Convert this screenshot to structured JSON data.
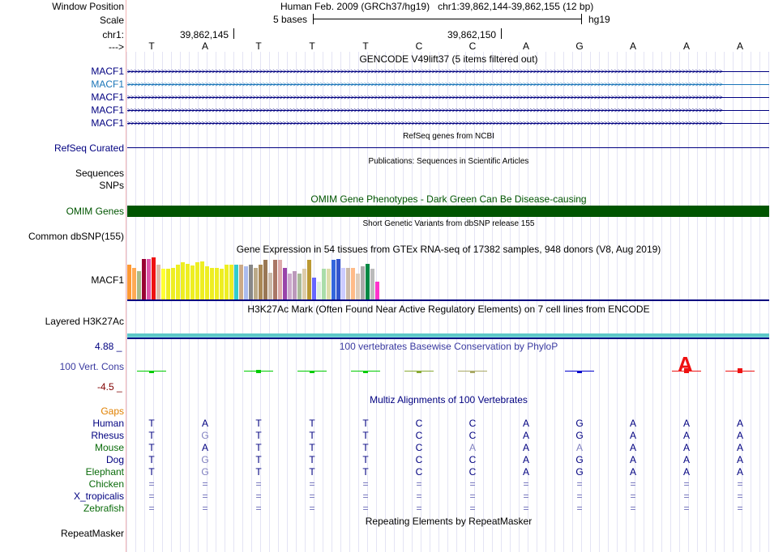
{
  "header": {
    "window_position_label": "Window Position",
    "window_position_value": "Human Feb. 2009 (GRCh37/hg19)   chr1:39,862,144-39,862,155 (12 bp)",
    "scale_label": "Scale",
    "scale_left": "5 bases",
    "scale_right": "hg19",
    "chr_label": "chr1:",
    "coord_1": "39,862,145",
    "coord_2": "39,862,150",
    "strand_label": "--->"
  },
  "reference_bases": [
    "T",
    "A",
    "T",
    "T",
    "T",
    "C",
    "C",
    "A",
    "G",
    "A",
    "A",
    "A"
  ],
  "tracks": {
    "gencode_title": "GENCODE V49lift37 (5 items filtered out)",
    "gencode_items": [
      {
        "label": "MACF1",
        "color": "#000080"
      },
      {
        "label": "MACF1",
        "color": "#1a75b8"
      },
      {
        "label": "MACF1",
        "color": "#000080"
      },
      {
        "label": "MACF1",
        "color": "#000080"
      },
      {
        "label": "MACF1",
        "color": "#000080"
      }
    ],
    "gene_arrows": ">>>>>>>>>>>>>>>>>>>>>>>>>>>>>>>>>>>>>>>>>>>>>>>>>>>>>>>>>>>>>>>>>>>>>>>>>>>>>>>>>>>>>>>>>>>>>>>>>>>>>>>>>>>>>>>>>>>>>>>>>>>>>>>>>>>>>>>>>>>>>>>>>>>>>>>>>>>>>>>>>>>>>>>>>>>>>>>>",
    "refseq_title": "RefSeq genes from NCBI",
    "refseq_label": "RefSeq Curated",
    "pubs_title": "Publications: Sequences in Scientific Articles",
    "sequences_label": "Sequences",
    "snps_label": "SNPs",
    "omim_title": "OMIM Gene Phenotypes - Dark Green Can Be Disease-causing",
    "omim_label": "OMIM Genes",
    "dbsnp_title": "Short Genetic Variants from dbSNP release 155",
    "dbsnp_label": "Common dbSNP(155)",
    "gtex_title": "Gene Expression in 54 tissues from GTEx RNA-seq of 17382 samples, 948 donors (V8, Aug 2019)",
    "gtex_label": "MACF1",
    "h3k27ac_title": "H3K27Ac Mark (Often Found Near Active Regulatory Elements) on 7 cell lines from ENCODE",
    "h3k27ac_label": "Layered H3K27Ac",
    "phylop_title": "100 vertebrates Basewise Conservation by PhyloP",
    "phylop_label": "100 Vert. Cons",
    "phylop_max": "4.88 _",
    "phylop_min": "-4.5 _",
    "multiz_title": "Multiz Alignments of 100 Vertebrates",
    "gaps_label": "Gaps",
    "repeat_title": "Repeating Elements by RepeatMasker",
    "repeat_label": "RepeatMasker"
  },
  "gtex_bars": [
    {
      "value": 0.8,
      "color": "#ff9933"
    },
    {
      "value": 0.73,
      "color": "#ffaa55"
    },
    {
      "value": 0.65,
      "color": "#aabb88"
    },
    {
      "value": 0.92,
      "color": "#990033"
    },
    {
      "value": 0.92,
      "color": "#dd55aa"
    },
    {
      "value": 0.97,
      "color": "#ee1111"
    },
    {
      "value": 0.8,
      "color": "#ddbbaa"
    },
    {
      "value": 0.7,
      "color": "#ffff33"
    },
    {
      "value": 0.7,
      "color": "#eeee22"
    },
    {
      "value": 0.73,
      "color": "#eeee22"
    },
    {
      "value": 0.8,
      "color": "#eeee22"
    },
    {
      "value": 0.85,
      "color": "#eeee22"
    },
    {
      "value": 0.82,
      "color": "#eeee22"
    },
    {
      "value": 0.77,
      "color": "#eeee22"
    },
    {
      "value": 0.85,
      "color": "#eeee22"
    },
    {
      "value": 0.87,
      "color": "#eeee22"
    },
    {
      "value": 0.75,
      "color": "#eeee22"
    },
    {
      "value": 0.72,
      "color": "#eeee22"
    },
    {
      "value": 0.72,
      "color": "#eeee22"
    },
    {
      "value": 0.7,
      "color": "#eeee22"
    },
    {
      "value": 0.8,
      "color": "#eeee22"
    },
    {
      "value": 0.8,
      "color": "#eeee22"
    },
    {
      "value": 0.8,
      "color": "#33cccc"
    },
    {
      "value": 0.8,
      "color": "#ccaa88"
    },
    {
      "value": 0.75,
      "color": "#aabbee"
    },
    {
      "value": 0.8,
      "color": "#888888"
    },
    {
      "value": 0.73,
      "color": "#bbaa88"
    },
    {
      "value": 0.8,
      "color": "#aa8855"
    },
    {
      "value": 0.9,
      "color": "#997755"
    },
    {
      "value": 0.62,
      "color": "#ccbbaa"
    },
    {
      "value": 0.9,
      "color": "#aa7766"
    },
    {
      "value": 0.9,
      "color": "#ddaaaa"
    },
    {
      "value": 0.73,
      "color": "#9944aa"
    },
    {
      "value": 0.6,
      "color": "#ccaacc"
    },
    {
      "value": 0.65,
      "color": "#bb99bb"
    },
    {
      "value": 0.6,
      "color": "#aabb99"
    },
    {
      "value": 0.7,
      "color": "#ddccaa"
    },
    {
      "value": 0.9,
      "color": "#bb9933"
    },
    {
      "value": 0.5,
      "color": "#6666ff"
    },
    {
      "value": 0.4,
      "color": "#ddeedd"
    },
    {
      "value": 0.7,
      "color": "#aaddaa"
    },
    {
      "value": 0.7,
      "color": "#ddddaa"
    },
    {
      "value": 0.9,
      "color": "#3366dd"
    },
    {
      "value": 0.92,
      "color": "#3355cc"
    },
    {
      "value": 0.73,
      "color": "#ccccff"
    },
    {
      "value": 0.73,
      "color": "#ccbbaa"
    },
    {
      "value": 0.73,
      "color": "#ffbb88"
    },
    {
      "value": 0.6,
      "color": "#ddccbb"
    },
    {
      "value": 0.75,
      "color": "#aaaaaa"
    },
    {
      "value": 0.82,
      "color": "#008844"
    },
    {
      "value": 0.7,
      "color": "#bbbbbb"
    },
    {
      "value": 0.4,
      "color": "#ff33cc"
    }
  ],
  "phylop_marks": [
    {
      "position": 1,
      "height": 0.06,
      "color": "#00cc00"
    },
    {
      "position": 3,
      "height": 0.18,
      "color": "#00cc00"
    },
    {
      "position": 4,
      "height": 0.1,
      "color": "#00cc00"
    },
    {
      "position": 5,
      "height": 0.05,
      "color": "#00cc00"
    },
    {
      "position": 6,
      "height": 0.02,
      "color": "#88aa33"
    },
    {
      "position": 7,
      "height": 0.02,
      "color": "#aaaa66"
    },
    {
      "position": 9,
      "height": 0.04,
      "color": "#0000cc"
    },
    {
      "position": 11,
      "height": 0.95,
      "color": "#ee1111"
    },
    {
      "position": 12,
      "height": 0.3,
      "color": "#ee1111"
    }
  ],
  "phylop_letters": [
    {
      "position": 11,
      "text": "A",
      "color": "#ee1111"
    }
  ],
  "species": [
    {
      "name": "Human",
      "color": "#000080",
      "bases": [
        "T",
        "A",
        "T",
        "T",
        "T",
        "C",
        "C",
        "A",
        "G",
        "A",
        "A",
        "A"
      ]
    },
    {
      "name": "Rhesus",
      "color": "#000080",
      "bases": [
        "T",
        "G",
        "T",
        "T",
        "T",
        "C",
        "C",
        "A",
        "G",
        "A",
        "A",
        "A"
      ]
    },
    {
      "name": "Mouse",
      "color": "#0a6b0a",
      "bases": [
        "T",
        "A",
        "T",
        "T",
        "T",
        "C",
        "A",
        "A",
        "A",
        "A",
        "A",
        "A"
      ]
    },
    {
      "name": "Dog",
      "color": "#000080",
      "bases": [
        "T",
        "G",
        "T",
        "T",
        "T",
        "C",
        "C",
        "A",
        "G",
        "A",
        "A",
        "A"
      ]
    },
    {
      "name": "Elephant",
      "color": "#0a6b0a",
      "bases": [
        "T",
        "G",
        "T",
        "T",
        "T",
        "C",
        "C",
        "A",
        "G",
        "A",
        "A",
        "A"
      ]
    },
    {
      "name": "Chicken",
      "color": "#0a6b0a",
      "bases": [
        "=",
        "=",
        "=",
        "=",
        "=",
        "=",
        "=",
        "=",
        "=",
        "=",
        "=",
        "="
      ]
    },
    {
      "name": "X_tropicalis",
      "color": "#000080",
      "bases": [
        "=",
        "=",
        "=",
        "=",
        "=",
        "=",
        "=",
        "=",
        "=",
        "=",
        "=",
        "="
      ]
    },
    {
      "name": "Zebrafish",
      "color": "#0a6b0a",
      "bases": [
        "=",
        "=",
        "=",
        "=",
        "=",
        "=",
        "=",
        "=",
        "=",
        "=",
        "=",
        "="
      ]
    }
  ],
  "mismatch_color": "#8080c0",
  "colors": {
    "omim_green": "#005500",
    "navy": "#000080",
    "h3k27ac_teal": "#5ec8c8",
    "gaps_orange": "#e08000",
    "phylop_max_color": "#000080",
    "phylop_min_color": "#800000"
  }
}
